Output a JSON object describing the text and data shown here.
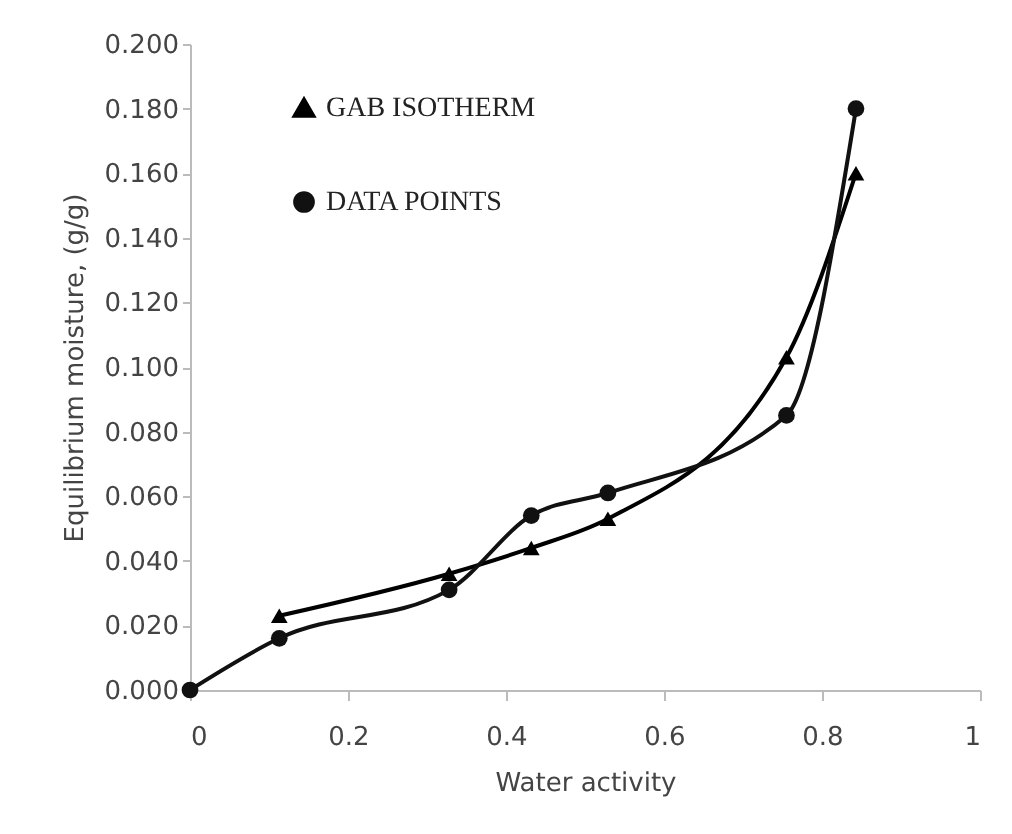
{
  "chart_data": {
    "type": "line",
    "xlabel": "Water activity",
    "ylabel": "Equilibrium moisture, (g/g)",
    "series": [
      {
        "name": "GAB ISOTHERM",
        "color": "#000000",
        "marker": "triangle",
        "x": [
          0.113,
          0.328,
          0.432,
          0.529,
          0.755,
          0.843
        ],
        "values": [
          0.023,
          0.036,
          0.044,
          0.053,
          0.103,
          0.16
        ]
      },
      {
        "name": "DATA POINTS",
        "color": "#111111",
        "marker": "circle",
        "x": [
          0,
          0.113,
          0.328,
          0.432,
          0.529,
          0.755,
          0.843
        ],
        "values": [
          0,
          0.016,
          0.031,
          0.054,
          0.061,
          0.085,
          0.18
        ]
      }
    ],
    "xlim": [
      0,
      1
    ],
    "xticks": [
      0,
      0.2,
      0.4,
      0.6,
      0.8,
      1
    ],
    "ylim": [
      0,
      0.2
    ],
    "yticks": [
      {
        "value": 0,
        "label": "0.000"
      },
      {
        "value": 0.02,
        "label": "0.020"
      },
      {
        "value": 0.04,
        "label": "0.040"
      },
      {
        "value": 0.06,
        "label": "0.060"
      },
      {
        "value": 0.08,
        "label": "0.080"
      },
      {
        "value": 0.1,
        "label": "0.100"
      },
      {
        "value": 0.12,
        "label": "0.120"
      },
      {
        "value": 0.14,
        "label": "0.140"
      },
      {
        "value": 0.16,
        "label": "0.160"
      },
      {
        "value": 0.18,
        "label": "0.180"
      },
      {
        "value": 0.2,
        "label": "0.200"
      }
    ],
    "grid": false,
    "legend": "top left",
    "line_style": "solid"
  }
}
